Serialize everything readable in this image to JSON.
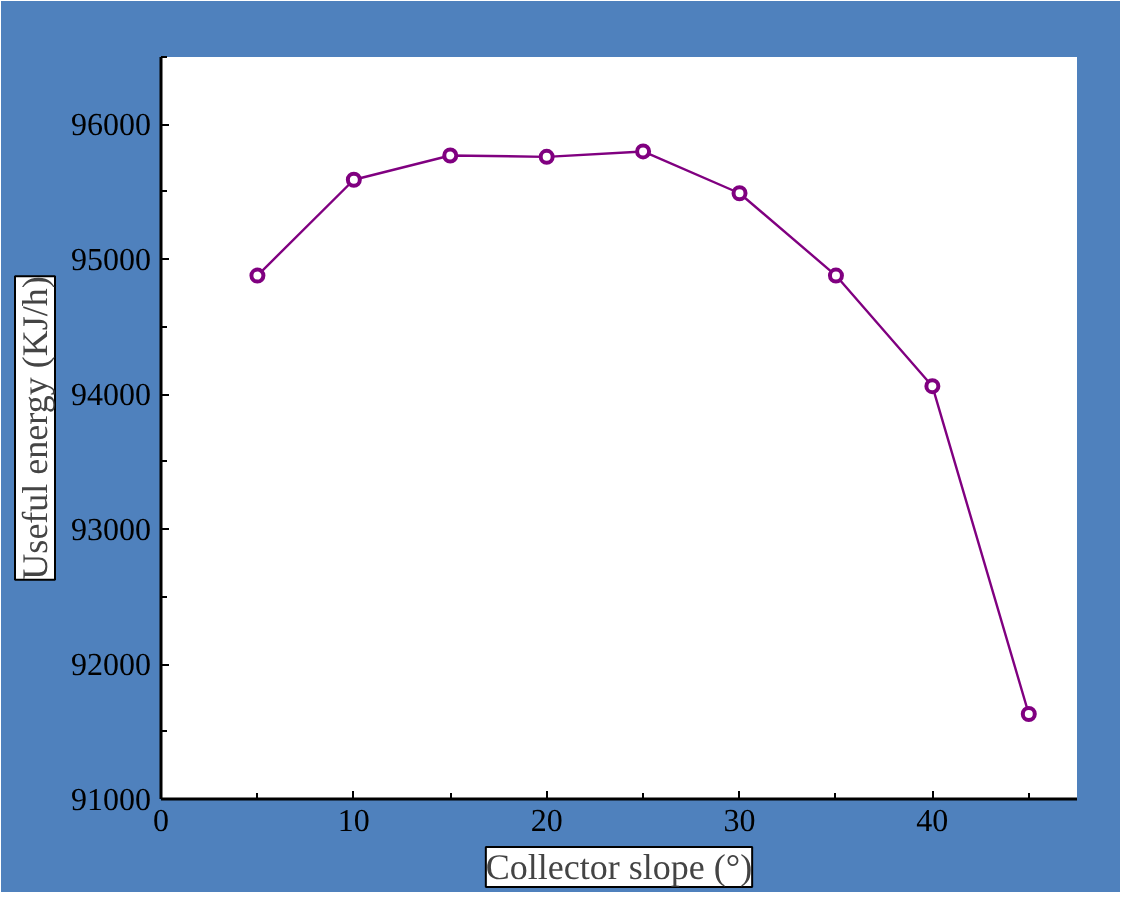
{
  "chart_data": {
    "type": "line",
    "xlabel": "Collector slope (°)",
    "ylabel": "Useful energy (KJ/h)",
    "x": [
      5,
      10,
      15,
      20,
      25,
      30,
      35,
      40,
      45
    ],
    "series": [
      {
        "color": "#800080",
        "values": [
          94880,
          95590,
          95770,
          95760,
          95800,
          95490,
          94880,
          94060,
          91630
        ]
      }
    ],
    "xlim": [
      0,
      47.5
    ],
    "xticks": [
      0,
      10,
      20,
      30,
      40
    ],
    "ylim": [
      91000,
      96500
    ],
    "yticks": [
      91000,
      92000,
      93000,
      94000,
      95000,
      96000
    ],
    "marker": "circle",
    "line_style": "solid"
  }
}
